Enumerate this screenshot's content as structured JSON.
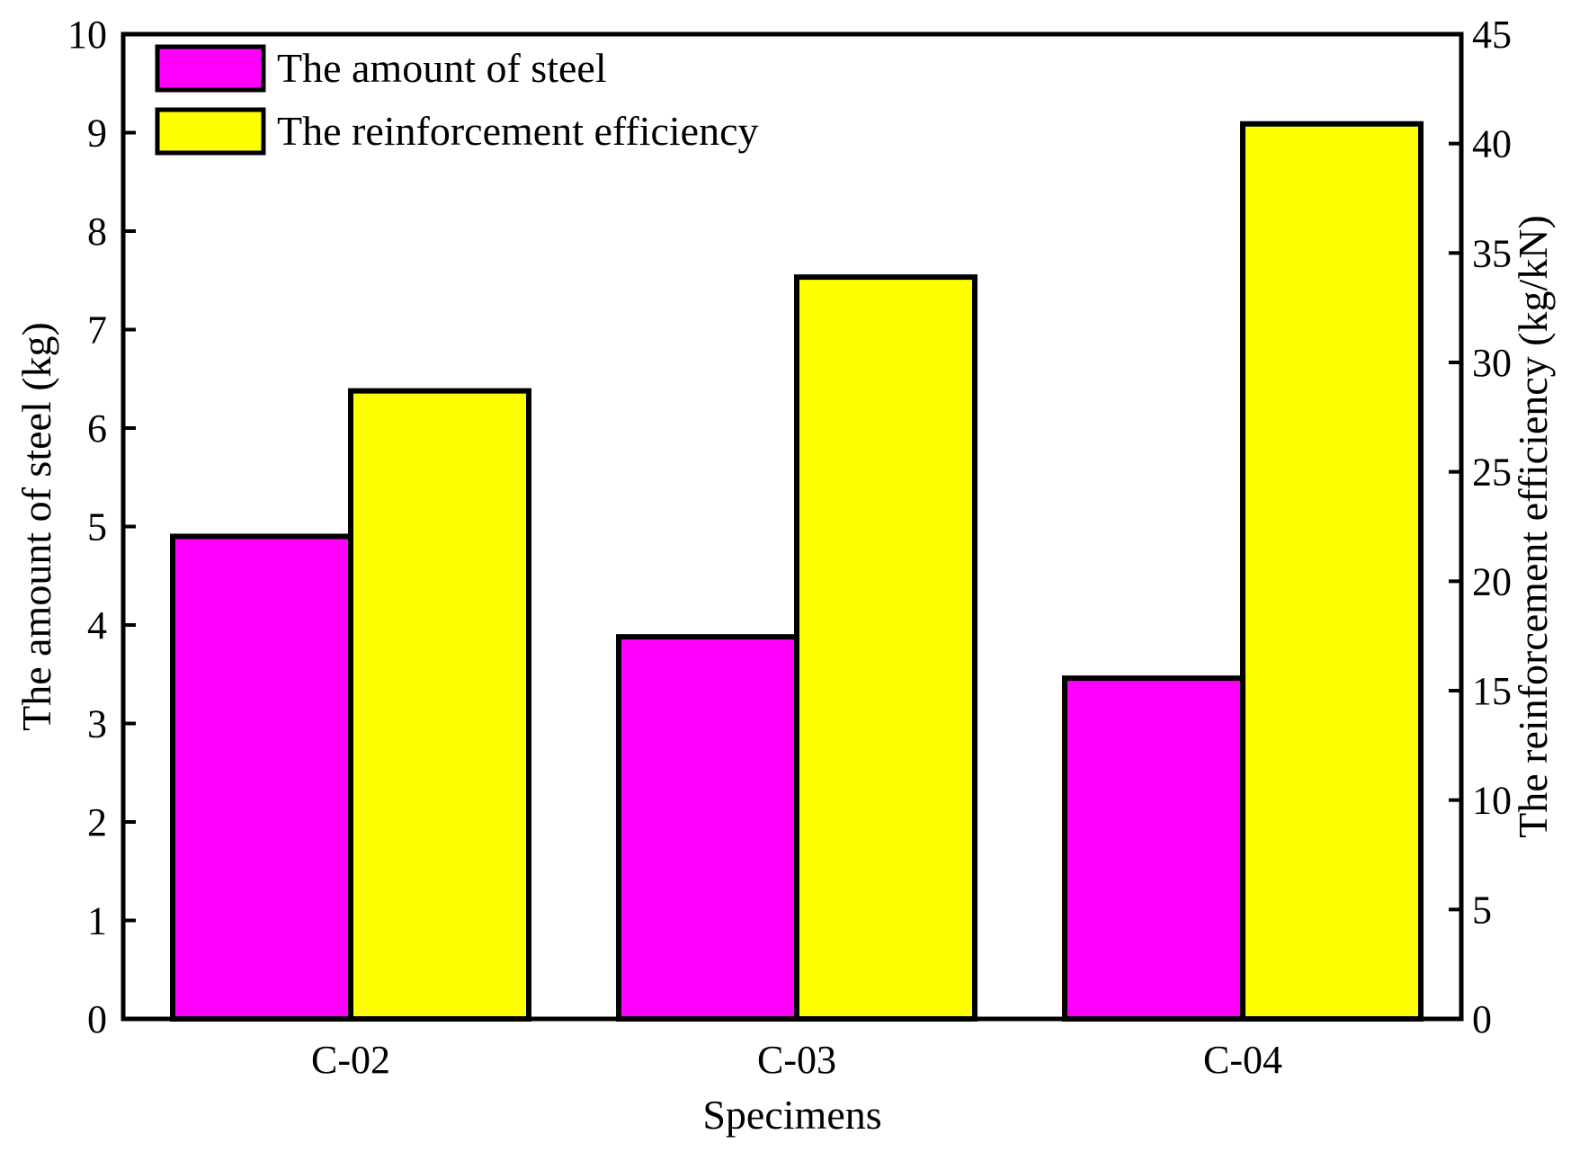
{
  "chart_data": {
    "type": "bar",
    "categories": [
      "C-02",
      "C-03",
      "C-04"
    ],
    "series": [
      {
        "name": "The amount of steel",
        "axis": "left",
        "color": "#ff00ff",
        "values": [
          4.9,
          3.88,
          3.46
        ]
      },
      {
        "name": "The reinforcement efficiency",
        "axis": "right",
        "color": "#ffff00",
        "values": [
          28.7,
          33.9,
          40.9
        ]
      }
    ],
    "xlabel": "Specimens",
    "ylabel": "The amount of steel (kg)",
    "y2label": "The reinforcement efficiency (kg/kN)",
    "ylim": [
      0,
      10
    ],
    "y2lim": [
      0,
      45
    ],
    "yticks": [
      "0",
      "1",
      "2",
      "3",
      "4",
      "5",
      "6",
      "7",
      "8",
      "9",
      "10"
    ],
    "y2ticks": [
      "0",
      "5",
      "10",
      "15",
      "20",
      "25",
      "30",
      "35",
      "40",
      "45"
    ],
    "legend_position": "top-left",
    "grid": false
  }
}
